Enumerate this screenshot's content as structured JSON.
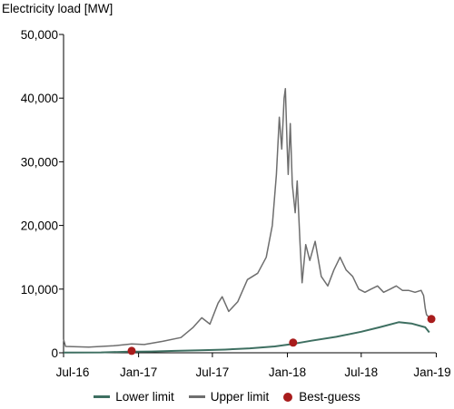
{
  "chart_data": {
    "type": "line",
    "ylabel": "Electricity load [MW]",
    "ylim": [
      0,
      50000
    ],
    "yticks": [
      0,
      10000,
      20000,
      30000,
      40000,
      50000
    ],
    "ytick_labels": [
      "0",
      "10,000",
      "20,000",
      "30,000",
      "40,000",
      "50,000"
    ],
    "xlim": [
      "2016-07-01",
      "2018-12-31"
    ],
    "xticks": [
      "2016-07-01",
      "2017-01-01",
      "2017-07-01",
      "2018-01-01",
      "2018-07-01",
      "2019-01-01"
    ],
    "xtick_labels": [
      "Jul-16",
      "Jan-17",
      "Jul-17",
      "Jan-18",
      "Jul-18",
      "Jan-19"
    ],
    "grid": false,
    "legend_position": "bottom",
    "series": [
      {
        "name": "Lower limit",
        "color": "#3e6f61",
        "points": [
          [
            "2016-07-01",
            40
          ],
          [
            "2016-10-01",
            60
          ],
          [
            "2016-12-01",
            150
          ],
          [
            "2017-02-01",
            200
          ],
          [
            "2017-04-01",
            300
          ],
          [
            "2017-06-01",
            380
          ],
          [
            "2017-08-01",
            500
          ],
          [
            "2017-10-01",
            700
          ],
          [
            "2017-12-01",
            1000
          ],
          [
            "2018-01-15",
            1400
          ],
          [
            "2018-03-01",
            1900
          ],
          [
            "2018-05-01",
            2500
          ],
          [
            "2018-07-01",
            3300
          ],
          [
            "2018-08-15",
            4000
          ],
          [
            "2018-10-01",
            4800
          ],
          [
            "2018-11-01",
            4600
          ],
          [
            "2018-12-05",
            4000
          ],
          [
            "2018-12-15",
            3200
          ]
        ]
      },
      {
        "name": "Upper limit",
        "color": "#6e6e6e",
        "points": [
          [
            "2016-07-01",
            2100
          ],
          [
            "2016-07-06",
            1000
          ],
          [
            "2016-09-01",
            900
          ],
          [
            "2016-11-01",
            1100
          ],
          [
            "2016-12-15",
            1400
          ],
          [
            "2017-01-15",
            1300
          ],
          [
            "2017-03-01",
            1800
          ],
          [
            "2017-04-15",
            2400
          ],
          [
            "2017-05-15",
            4000
          ],
          [
            "2017-06-05",
            5500
          ],
          [
            "2017-06-25",
            4500
          ],
          [
            "2017-07-15",
            7800
          ],
          [
            "2017-07-25",
            8800
          ],
          [
            "2017-08-10",
            6500
          ],
          [
            "2017-09-01",
            8000
          ],
          [
            "2017-09-25",
            11500
          ],
          [
            "2017-10-20",
            12500
          ],
          [
            "2017-11-10",
            15000
          ],
          [
            "2017-11-25",
            20000
          ],
          [
            "2017-12-05",
            28000
          ],
          [
            "2017-12-12",
            37000
          ],
          [
            "2017-12-18",
            32000
          ],
          [
            "2017-12-24",
            40000
          ],
          [
            "2017-12-27",
            41500
          ],
          [
            "2017-12-31",
            33000
          ],
          [
            "2018-01-03",
            28000
          ],
          [
            "2018-01-08",
            36000
          ],
          [
            "2018-01-13",
            26500
          ],
          [
            "2018-01-20",
            22000
          ],
          [
            "2018-01-25",
            27000
          ],
          [
            "2018-02-01",
            17000
          ],
          [
            "2018-02-06",
            11000
          ],
          [
            "2018-02-15",
            17000
          ],
          [
            "2018-02-25",
            14500
          ],
          [
            "2018-03-10",
            17500
          ],
          [
            "2018-03-25",
            12000
          ],
          [
            "2018-04-10",
            10500
          ],
          [
            "2018-04-25",
            13000
          ],
          [
            "2018-05-10",
            15000
          ],
          [
            "2018-05-25",
            13000
          ],
          [
            "2018-06-10",
            12000
          ],
          [
            "2018-06-25",
            10000
          ],
          [
            "2018-07-10",
            9500
          ],
          [
            "2018-07-25",
            10000
          ],
          [
            "2018-08-10",
            10500
          ],
          [
            "2018-08-25",
            9500
          ],
          [
            "2018-09-10",
            10000
          ],
          [
            "2018-09-25",
            10500
          ],
          [
            "2018-10-10",
            9800
          ],
          [
            "2018-10-25",
            9800
          ],
          [
            "2018-11-10",
            9500
          ],
          [
            "2018-11-25",
            9800
          ],
          [
            "2018-12-01",
            9000
          ],
          [
            "2018-12-05",
            7000
          ],
          [
            "2018-12-08",
            6000
          ],
          [
            "2018-12-15",
            5500
          ]
        ]
      },
      {
        "name": "Best-guess",
        "color": "#a81c1c",
        "marker": "dot",
        "points": [
          [
            "2016-12-15",
            300
          ],
          [
            "2018-01-15",
            1600
          ],
          [
            "2018-12-20",
            5300
          ]
        ]
      }
    ]
  }
}
